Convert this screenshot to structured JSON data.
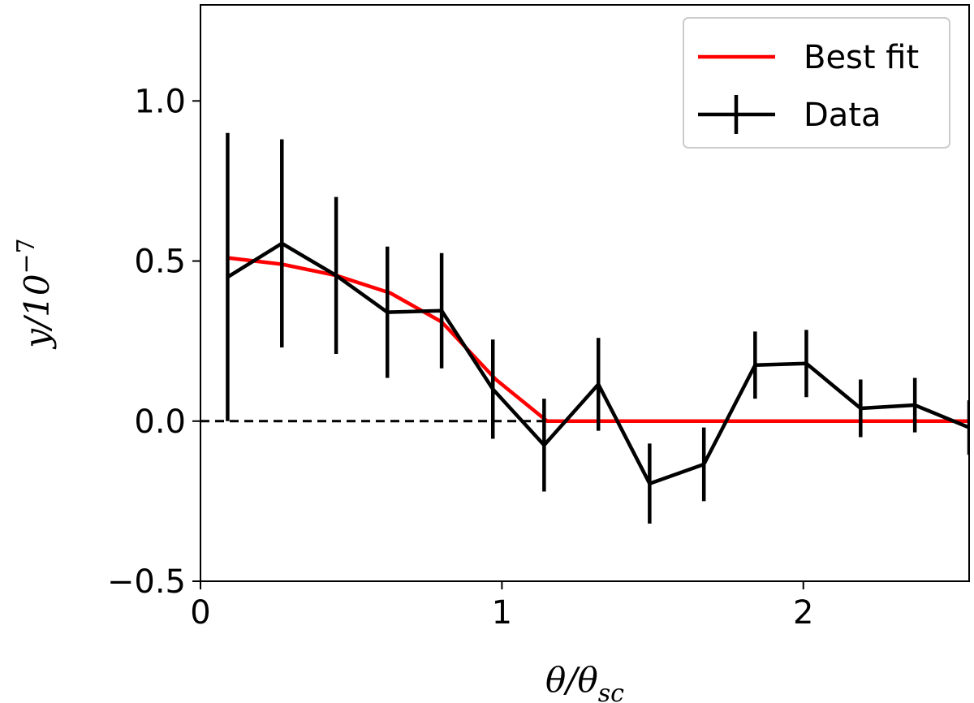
{
  "chart_data": {
    "type": "line",
    "xlabel_main": "θ/θ",
    "xlabel_sub": "sc",
    "ylabel_main": "y/10",
    "ylabel_sup": "−7",
    "xlim": [
      0,
      2.55
    ],
    "ylim": [
      -0.5,
      1.3
    ],
    "xticks": [
      {
        "value": 0,
        "label": "0"
      },
      {
        "value": 1,
        "label": "1"
      },
      {
        "value": 2,
        "label": "2"
      }
    ],
    "yticks": [
      {
        "value": -0.5,
        "label": "−0.5"
      },
      {
        "value": 0.0,
        "label": "0.0"
      },
      {
        "value": 0.5,
        "label": "0.5"
      },
      {
        "value": 1.0,
        "label": "1.0"
      }
    ],
    "reference_line": {
      "y": 0,
      "style": "dashed",
      "color": "#000000"
    },
    "series": [
      {
        "name": "Best fit",
        "color": "#ff0000",
        "points": [
          {
            "x": 0.09,
            "y": 0.51
          },
          {
            "x": 0.27,
            "y": 0.49
          },
          {
            "x": 0.45,
            "y": 0.455
          },
          {
            "x": 0.63,
            "y": 0.4
          },
          {
            "x": 0.8,
            "y": 0.31
          },
          {
            "x": 0.98,
            "y": 0.13
          },
          {
            "x": 1.15,
            "y": 0.0
          },
          {
            "x": 2.55,
            "y": 0.0
          }
        ]
      },
      {
        "name": "Data",
        "color": "#000000",
        "points": [
          {
            "x": 0.09,
            "y": 0.45,
            "err": 0.45
          },
          {
            "x": 0.27,
            "y": 0.555,
            "err": 0.325
          },
          {
            "x": 0.45,
            "y": 0.455,
            "err": 0.245
          },
          {
            "x": 0.62,
            "y": 0.34,
            "err": 0.205
          },
          {
            "x": 0.8,
            "y": 0.345,
            "err": 0.18
          },
          {
            "x": 0.97,
            "y": 0.1,
            "err": 0.155
          },
          {
            "x": 1.14,
            "y": -0.075,
            "err": 0.145
          },
          {
            "x": 1.32,
            "y": 0.115,
            "err": 0.145
          },
          {
            "x": 1.49,
            "y": -0.195,
            "err": 0.125
          },
          {
            "x": 1.67,
            "y": -0.135,
            "err": 0.115
          },
          {
            "x": 1.84,
            "y": 0.175,
            "err": 0.105
          },
          {
            "x": 2.01,
            "y": 0.18,
            "err": 0.105
          },
          {
            "x": 2.19,
            "y": 0.04,
            "err": 0.09
          },
          {
            "x": 2.37,
            "y": 0.05,
            "err": 0.085
          },
          {
            "x": 2.55,
            "y": -0.02,
            "err": 0.085
          }
        ]
      }
    ],
    "legend": {
      "position": "top-right",
      "entries": [
        {
          "label": "Best fit",
          "color": "#ff0000",
          "marker": "line"
        },
        {
          "label": "Data",
          "color": "#000000",
          "marker": "errorbar"
        }
      ]
    }
  }
}
